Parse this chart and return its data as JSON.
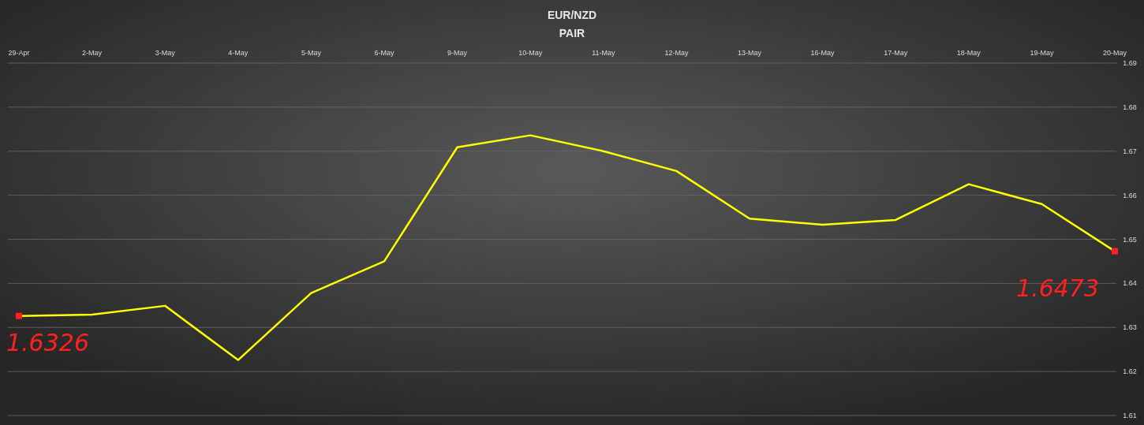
{
  "chart_data": {
    "type": "line",
    "title": "EUR/NZD",
    "subtitle": "PAIR",
    "categories": [
      "29-Apr",
      "2-May",
      "3-May",
      "4-May",
      "5-May",
      "6-May",
      "9-May",
      "10-May",
      "11-May",
      "12-May",
      "13-May",
      "16-May",
      "17-May",
      "18-May",
      "19-May",
      "20-May"
    ],
    "series": [
      {
        "color": "#ffff00",
        "values": [
          1.6326,
          1.6329,
          1.6349,
          1.6226,
          1.6378,
          1.645,
          1.6709,
          1.6736,
          1.67,
          1.6655,
          1.6547,
          1.6533,
          1.6544,
          1.6625,
          1.658,
          1.6473
        ]
      }
    ],
    "ylim": [
      1.61,
      1.69
    ],
    "yticks": [
      1.61,
      1.62,
      1.63,
      1.64,
      1.65,
      1.66,
      1.67,
      1.68,
      1.69
    ],
    "grid": "y",
    "marker": "none",
    "line_style": "solid",
    "annotations": [
      {
        "text": "1.6326",
        "x": "29-Apr",
        "y": 1.6326
      },
      {
        "text": "1.6473",
        "x": "20-May",
        "y": 1.6473
      }
    ]
  }
}
